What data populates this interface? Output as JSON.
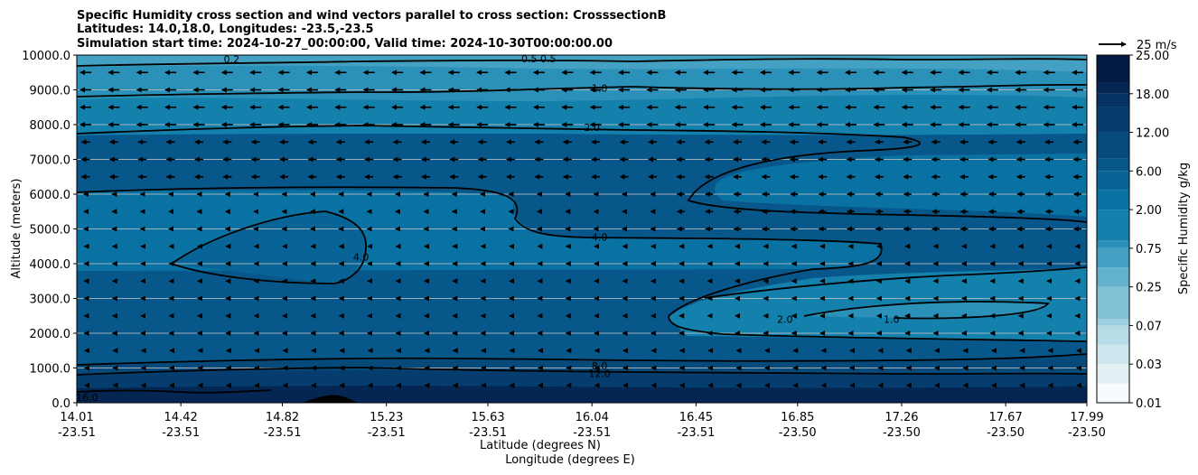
{
  "chart_data": {
    "type": "contour",
    "title_lines": [
      "Specific Humidity cross section and wind vectors parallel to cross section: CrosssectionB",
      "Latitudes: 14.0,18.0, Longitudes: -23.5,-23.5",
      "Simulation start time: 2024-10-27_00:00:00, Valid time: 2024-10-30T00:00:00.00"
    ],
    "ylabel": "Altitude (meters)",
    "xlabel_lat": "Latitude (degrees N)",
    "xlabel_lon": "Longitude (degrees E)",
    "ylim": [
      0,
      10000
    ],
    "y_ticks": [
      "0.0",
      "1000.0",
      "2000.0",
      "3000.0",
      "4000.0",
      "5000.0",
      "6000.0",
      "7000.0",
      "8000.0",
      "9000.0",
      "10000.0"
    ],
    "x_ticks": [
      {
        "lat": "14.01",
        "lon": "-23.51"
      },
      {
        "lat": "14.42",
        "lon": "-23.51"
      },
      {
        "lat": "14.82",
        "lon": "-23.51"
      },
      {
        "lat": "15.23",
        "lon": "-23.51"
      },
      {
        "lat": "15.63",
        "lon": "-23.51"
      },
      {
        "lat": "16.04",
        "lon": "-23.51"
      },
      {
        "lat": "16.45",
        "lon": "-23.51"
      },
      {
        "lat": "16.85",
        "lon": "-23.50"
      },
      {
        "lat": "17.26",
        "lon": "-23.50"
      },
      {
        "lat": "17.67",
        "lon": "-23.50"
      },
      {
        "lat": "17.99",
        "lon": "-23.50"
      }
    ],
    "colorbar": {
      "label": "Specific Humidity g/kg",
      "ticks": [
        "0.01",
        "0.03",
        "0.07",
        "0.25",
        "0.75",
        "2.00",
        "6.00",
        "12.00",
        "18.00",
        "25.00"
      ],
      "levels": [
        0.01,
        0.02,
        0.03,
        0.05,
        0.07,
        0.1,
        0.25,
        0.5,
        0.75,
        1.0,
        2.0,
        4.0,
        6.0,
        8.0,
        12.0,
        16.0,
        18.0,
        20.0,
        25.0
      ],
      "colors": [
        "#f7fbfd",
        "#e3f1f5",
        "#cde7ee",
        "#b6dce7",
        "#9ccfdf",
        "#80c1d6",
        "#62b1cd",
        "#45a1c3",
        "#2b91b8",
        "#1481ad",
        "#0a72a3",
        "#086497",
        "#07578a",
        "#064a7c",
        "#053e6e",
        "#053261",
        "#042653",
        "#031a45",
        "#020f38"
      ]
    },
    "wind_reference": "25 m/s",
    "contour_levels": [
      "0.2",
      "0.5",
      "1.0",
      "2.0",
      "4.0",
      "8.0",
      "12.0",
      "16.0"
    ],
    "contour_labels": [
      {
        "text": "0.2",
        "x": 14.62,
        "y": 9880
      },
      {
        "text": "0.5 0.5",
        "x": 15.83,
        "y": 9900
      },
      {
        "text": "1.0",
        "x": 16.07,
        "y": 9050
      },
      {
        "text": "2.0",
        "x": 16.04,
        "y": 7920
      },
      {
        "text": "4.0",
        "x": 16.07,
        "y": 4760
      },
      {
        "text": "4.0",
        "x": 15.13,
        "y": 4200
      },
      {
        "text": "8.0",
        "x": 16.07,
        "y": 1070
      },
      {
        "text": "12.0",
        "x": 16.07,
        "y": 850
      },
      {
        "text": "2.0",
        "x": 16.8,
        "y": 2400
      },
      {
        "text": "1.0",
        "x": 17.22,
        "y": 2400
      },
      {
        "text": "16.0",
        "x": 14.05,
        "y": 150
      }
    ]
  }
}
